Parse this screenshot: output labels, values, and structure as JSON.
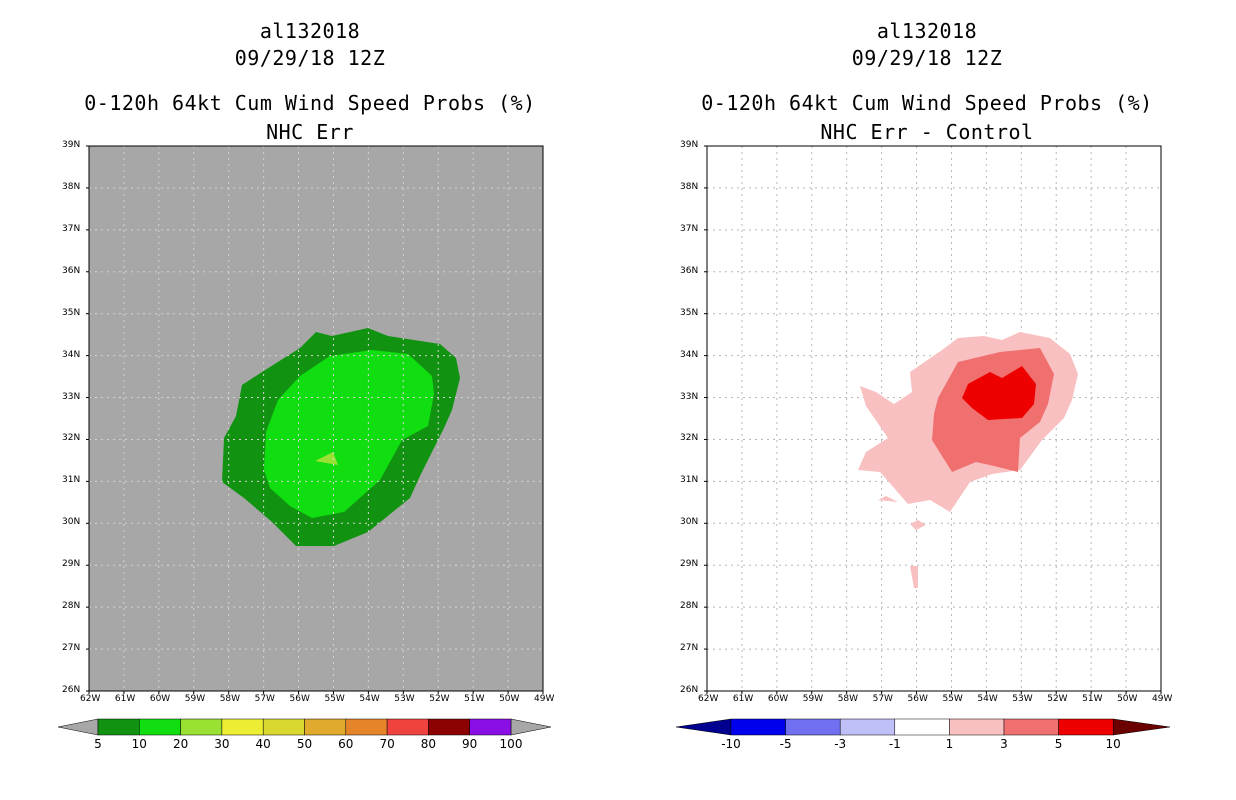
{
  "left_panel": {
    "storm_id": "al132018",
    "datetime": "09/29/18 12Z",
    "product": "0-120h 64kt Cum Wind Speed Probs (%)",
    "subtitle": "NHC Err",
    "colorbar": {
      "labels": [
        "5",
        "10",
        "20",
        "30",
        "40",
        "50",
        "60",
        "70",
        "80",
        "90",
        "100"
      ],
      "colors": [
        "#119311",
        "#11de11",
        "#99e133",
        "#eded33",
        "#d8d831",
        "#e0aa2c",
        "#e6842a",
        "#f0433f",
        "#8c0202",
        "#8a0ee6"
      ],
      "background_color": "#a7a7a7"
    }
  },
  "right_panel": {
    "storm_id": "al132018",
    "datetime": "09/29/18 12Z",
    "product": "0-120h 64kt Cum Wind Speed Probs (%)",
    "subtitle": "NHC Err - Control",
    "colorbar": {
      "labels": [
        "-10",
        "-5",
        "-3",
        "-1",
        "1",
        "3",
        "5",
        "10"
      ],
      "colors": [
        "#000090",
        "#0000ee",
        "#7070f0",
        "#c0c0f8",
        "#ffffff",
        "#f8c0c0",
        "#f07070",
        "#ee0000",
        "#6a0000"
      ]
    }
  },
  "axes": {
    "lat_labels": [
      "39N",
      "38N",
      "37N",
      "36N",
      "35N",
      "34N",
      "33N",
      "32N",
      "31N",
      "30N",
      "29N",
      "28N",
      "27N",
      "26N"
    ],
    "lon_labels": [
      "62W",
      "61W",
      "60W",
      "59W",
      "58W",
      "57W",
      "56W",
      "55W",
      "54W",
      "53W",
      "52W",
      "51W",
      "50W",
      "49W"
    ]
  }
}
